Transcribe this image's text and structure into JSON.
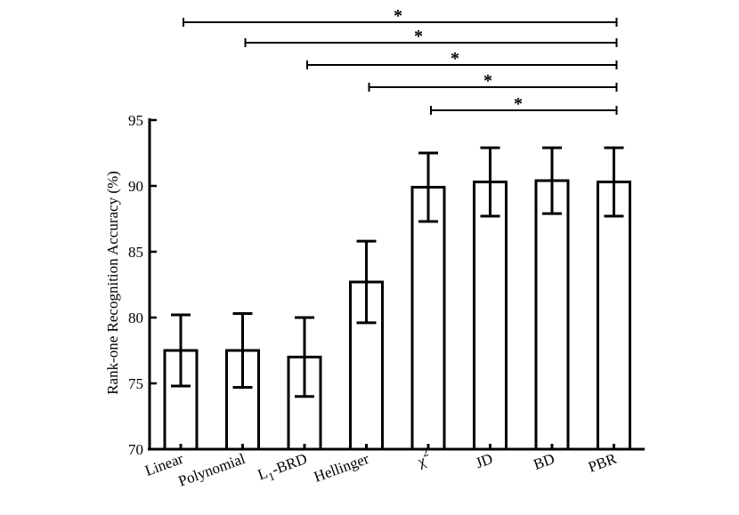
{
  "chart_data": {
    "type": "bar",
    "title": "",
    "xlabel": "",
    "ylabel": "Rank-one Recognition Accuracy (%)",
    "ylim": [
      70,
      95
    ],
    "yticks": [
      70,
      75,
      80,
      85,
      90,
      95
    ],
    "categories": [
      "Linear",
      "Polynomial",
      "L1-BRD",
      "Hellinger",
      "χ2",
      "JD",
      "BD",
      "PBR"
    ],
    "values": [
      77.5,
      77.5,
      77.0,
      82.7,
      89.9,
      90.3,
      90.4,
      90.3
    ],
    "errors": [
      2.7,
      2.8,
      3.0,
      3.1,
      2.6,
      2.6,
      2.5,
      2.6
    ],
    "grid": false,
    "significance": [
      {
        "from": "Linear",
        "to": "PBR",
        "label": "*"
      },
      {
        "from": "Polynomial",
        "to": "PBR",
        "label": "*"
      },
      {
        "from": "L1-BRD",
        "to": "PBR",
        "label": "*"
      },
      {
        "from": "Hellinger",
        "to": "PBR",
        "label": "*"
      },
      {
        "from": "χ2",
        "to": "PBR",
        "label": "*"
      }
    ]
  }
}
